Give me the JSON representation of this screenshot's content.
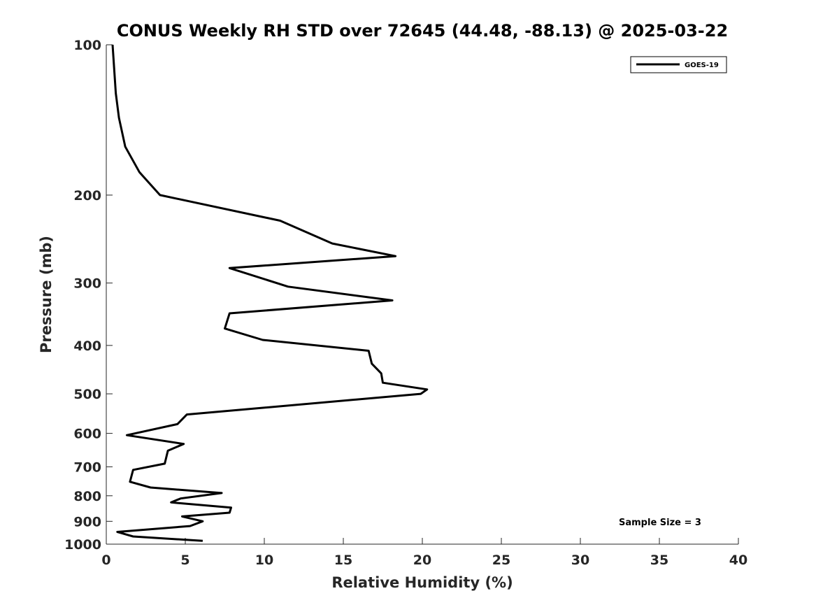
{
  "chart_data": {
    "type": "line",
    "title": "CONUS Weekly RH STD over 72645 (44.48, -88.13) @ 2025-03-22",
    "xlabel": "Relative Humidity (%)",
    "ylabel": "Pressure (mb)",
    "xlim": [
      0,
      40
    ],
    "ylim": [
      100,
      1000
    ],
    "y_scale": "log",
    "y_reversed": true,
    "x_ticks": [
      0,
      5,
      10,
      15,
      20,
      25,
      30,
      35,
      40
    ],
    "y_ticks": [
      100,
      200,
      300,
      400,
      500,
      600,
      700,
      800,
      900,
      1000
    ],
    "grid": false,
    "legend_position": "top-right",
    "series": [
      {
        "name": "GOES-19",
        "color": "#000000",
        "x": [
          0.4,
          0.6,
          0.8,
          1.2,
          2.1,
          3.4,
          11.0,
          14.3,
          18.3,
          7.8,
          11.5,
          18.1,
          7.8,
          7.5,
          9.9,
          16.6,
          16.8,
          17.4,
          17.5,
          20.3,
          19.9,
          5.1,
          4.5,
          1.3,
          4.9,
          3.9,
          3.7,
          1.7,
          1.5,
          2.8,
          7.3,
          4.7,
          4.1,
          7.9,
          7.8,
          4.8,
          6.1,
          5.3,
          0.7,
          1.7,
          6.1
        ],
        "y": [
          100,
          125,
          140,
          160,
          180,
          200,
          225,
          250,
          265,
          280,
          305,
          325,
          345,
          370,
          390,
          410,
          435,
          455,
          475,
          490,
          500,
          550,
          575,
          605,
          630,
          650,
          690,
          710,
          750,
          770,
          790,
          810,
          825,
          845,
          865,
          880,
          900,
          920,
          945,
          965,
          985
        ]
      }
    ],
    "annotations": [
      "Sample Size = 3"
    ]
  }
}
